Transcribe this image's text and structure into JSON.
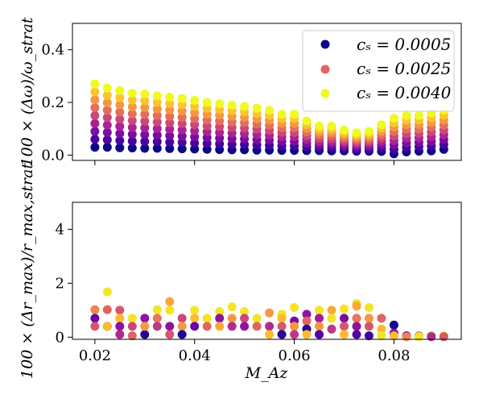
{
  "chart_data": [
    {
      "type": "scatter",
      "panel": "top",
      "ylabel": "100 × (Δω)/ω_strat",
      "xlabel": "",
      "xlim": [
        0.0155,
        0.0935
      ],
      "ylim": [
        -0.02,
        0.5
      ],
      "xticks": [
        0.02,
        0.04,
        0.06,
        0.08
      ],
      "yticks": [
        0.0,
        0.2,
        0.4
      ],
      "ytick_labels": [
        "0.0",
        "0.2",
        "0.4"
      ],
      "legend": {
        "location": "top-right",
        "entries": [
          {
            "name": "c_s = 0.0005",
            "text": "cₛ = 0.0005",
            "color": "#0d0887"
          },
          {
            "name": "c_s = 0.0025",
            "text": "cₛ = 0.0025",
            "color": "#e16462"
          },
          {
            "name": "c_s = 0.0040",
            "text": "cₛ = 0.0040",
            "color": "#f0f921"
          }
        ]
      },
      "colormap": "plasma",
      "series_count": 9,
      "x": [
        0.02,
        0.0225,
        0.025,
        0.0275,
        0.03,
        0.0325,
        0.035,
        0.0375,
        0.04,
        0.0425,
        0.045,
        0.0475,
        0.05,
        0.0525,
        0.055,
        0.0575,
        0.06,
        0.0625,
        0.065,
        0.0675,
        0.07,
        0.0725,
        0.075,
        0.0775,
        0.08,
        0.0825,
        0.085,
        0.0875,
        0.09
      ],
      "y_low": [
        0.03,
        0.03,
        0.028,
        0.027,
        0.026,
        0.026,
        0.025,
        0.024,
        0.023,
        0.022,
        0.021,
        0.02,
        0.02,
        0.019,
        0.019,
        0.018,
        0.018,
        0.017,
        0.017,
        0.016,
        0.016,
        0.015,
        0.015,
        0.014,
        0.005,
        0.012,
        0.015,
        0.016,
        0.022
      ],
      "y_high": [
        0.27,
        0.255,
        0.245,
        0.235,
        0.232,
        0.225,
        0.22,
        0.215,
        0.208,
        0.2,
        0.195,
        0.19,
        0.185,
        0.178,
        0.17,
        0.155,
        0.155,
        0.13,
        0.11,
        0.11,
        0.095,
        0.085,
        0.09,
        0.115,
        0.14,
        0.15,
        0.15,
        0.16,
        0.17
      ]
    },
    {
      "type": "scatter",
      "panel": "bottom",
      "ylabel": "100 × (Δr_max)/r_max,strat",
      "xlabel": "M_Az",
      "xlim": [
        0.0155,
        0.0935
      ],
      "ylim": [
        -0.08,
        5.0
      ],
      "xticks": [
        0.02,
        0.04,
        0.06,
        0.08
      ],
      "xtick_labels": [
        "0.02",
        "0.04",
        "0.06",
        "0.08"
      ],
      "yticks": [
        0,
        2,
        4
      ],
      "ytick_labels": [
        "0",
        "2",
        "4"
      ],
      "colormap": "plasma",
      "points": [
        {
          "x": 0.02,
          "y": 1.02,
          "c": 0.7
        },
        {
          "x": 0.02,
          "y": 0.7,
          "c": 0.2
        },
        {
          "x": 0.02,
          "y": 0.4,
          "c": 0.55
        },
        {
          "x": 0.0225,
          "y": 1.68,
          "c": 0.95
        },
        {
          "x": 0.0225,
          "y": 1.02,
          "c": 0.6
        },
        {
          "x": 0.0225,
          "y": 0.4,
          "c": 0.1
        },
        {
          "x": 0.0225,
          "y": 0.4,
          "c": 0.85
        },
        {
          "x": 0.025,
          "y": 1.0,
          "c": 0.55
        },
        {
          "x": 0.025,
          "y": 0.7,
          "c": 0.85
        },
        {
          "x": 0.025,
          "y": 0.4,
          "c": 0.3
        },
        {
          "x": 0.025,
          "y": 0.1,
          "c": 0.4
        },
        {
          "x": 0.0275,
          "y": 0.7,
          "c": 0.95
        },
        {
          "x": 0.0275,
          "y": 0.4,
          "c": 0.5
        },
        {
          "x": 0.0275,
          "y": 0.05,
          "c": 0.6
        },
        {
          "x": 0.03,
          "y": 0.7,
          "c": 0.3
        },
        {
          "x": 0.03,
          "y": 0.1,
          "c": 0.05
        },
        {
          "x": 0.03,
          "y": 0.4,
          "c": 0.75
        },
        {
          "x": 0.0325,
          "y": 1.02,
          "c": 0.95
        },
        {
          "x": 0.0325,
          "y": 0.7,
          "c": 0.65
        },
        {
          "x": 0.0325,
          "y": 0.4,
          "c": 0.45
        },
        {
          "x": 0.035,
          "y": 1.32,
          "c": 0.8
        },
        {
          "x": 0.035,
          "y": 1.0,
          "c": 0.95
        },
        {
          "x": 0.035,
          "y": 0.4,
          "c": 0.3
        },
        {
          "x": 0.035,
          "y": 0.1,
          "c": 0.55
        },
        {
          "x": 0.0375,
          "y": 0.7,
          "c": 0.5
        },
        {
          "x": 0.0375,
          "y": 0.4,
          "c": 0.75
        },
        {
          "x": 0.0375,
          "y": 0.1,
          "c": 0.05
        },
        {
          "x": 0.04,
          "y": 1.0,
          "c": 0.95
        },
        {
          "x": 0.04,
          "y": 0.7,
          "c": 0.85
        },
        {
          "x": 0.04,
          "y": 0.4,
          "c": 0.2
        },
        {
          "x": 0.0425,
          "y": 0.7,
          "c": 0.95
        },
        {
          "x": 0.0425,
          "y": 0.4,
          "c": 0.6
        },
        {
          "x": 0.045,
          "y": 0.95,
          "c": 0.95
        },
        {
          "x": 0.045,
          "y": 0.7,
          "c": 0.3
        },
        {
          "x": 0.045,
          "y": 0.4,
          "c": 0.8
        },
        {
          "x": 0.0475,
          "y": 1.12,
          "c": 0.95
        },
        {
          "x": 0.0475,
          "y": 0.7,
          "c": 0.75
        },
        {
          "x": 0.0475,
          "y": 0.4,
          "c": 0.4
        },
        {
          "x": 0.05,
          "y": 0.95,
          "c": 0.95
        },
        {
          "x": 0.05,
          "y": 0.7,
          "c": 0.5
        },
        {
          "x": 0.05,
          "y": 0.4,
          "c": 0.3
        },
        {
          "x": 0.0525,
          "y": 0.7,
          "c": 0.95
        },
        {
          "x": 0.0525,
          "y": 0.4,
          "c": 0.6
        },
        {
          "x": 0.055,
          "y": 0.9,
          "c": 0.75
        },
        {
          "x": 0.055,
          "y": 0.4,
          "c": 0.4
        },
        {
          "x": 0.055,
          "y": 0.1,
          "c": 0.85
        },
        {
          "x": 0.0575,
          "y": 0.85,
          "c": 0.95
        },
        {
          "x": 0.0575,
          "y": 0.7,
          "c": 0.85
        },
        {
          "x": 0.0575,
          "y": 0.4,
          "c": 0.55
        },
        {
          "x": 0.0575,
          "y": 0.1,
          "c": 0.05
        },
        {
          "x": 0.06,
          "y": 1.1,
          "c": 0.95
        },
        {
          "x": 0.06,
          "y": 0.6,
          "c": 0.25
        },
        {
          "x": 0.06,
          "y": 0.4,
          "c": 0.75
        },
        {
          "x": 0.06,
          "y": 0.1,
          "c": 0.45
        },
        {
          "x": 0.0625,
          "y": 0.85,
          "c": 0.3
        },
        {
          "x": 0.0625,
          "y": 0.6,
          "c": 0.6
        },
        {
          "x": 0.0625,
          "y": 0.3,
          "c": 0.05
        },
        {
          "x": 0.0625,
          "y": 0.1,
          "c": 0.85
        },
        {
          "x": 0.065,
          "y": 1.0,
          "c": 0.95
        },
        {
          "x": 0.065,
          "y": 0.7,
          "c": 0.35
        },
        {
          "x": 0.065,
          "y": 0.4,
          "c": 0.75
        },
        {
          "x": 0.065,
          "y": 0.1,
          "c": 0.15
        },
        {
          "x": 0.0675,
          "y": 1.0,
          "c": 0.8
        },
        {
          "x": 0.0675,
          "y": 0.7,
          "c": 0.95
        },
        {
          "x": 0.0675,
          "y": 0.3,
          "c": 0.45
        },
        {
          "x": 0.07,
          "y": 1.05,
          "c": 0.95
        },
        {
          "x": 0.07,
          "y": 0.7,
          "c": 0.25
        },
        {
          "x": 0.07,
          "y": 0.4,
          "c": 0.55
        },
        {
          "x": 0.07,
          "y": 0.1,
          "c": 0.85
        },
        {
          "x": 0.0725,
          "y": 1.25,
          "c": 0.95
        },
        {
          "x": 0.0725,
          "y": 1.15,
          "c": 0.8
        },
        {
          "x": 0.0725,
          "y": 0.7,
          "c": 0.65
        },
        {
          "x": 0.0725,
          "y": 0.4,
          "c": 0.3
        },
        {
          "x": 0.0725,
          "y": 0.1,
          "c": 0.15
        },
        {
          "x": 0.075,
          "y": 1.1,
          "c": 0.95
        },
        {
          "x": 0.075,
          "y": 0.7,
          "c": 0.75
        },
        {
          "x": 0.075,
          "y": 0.4,
          "c": 0.55
        },
        {
          "x": 0.075,
          "y": 0.05,
          "c": 0.1
        },
        {
          "x": 0.0775,
          "y": 0.7,
          "c": 0.6
        },
        {
          "x": 0.0775,
          "y": 0.3,
          "c": 0.85
        },
        {
          "x": 0.0775,
          "y": 0.05,
          "c": 0.95
        },
        {
          "x": 0.08,
          "y": 0.45,
          "c": 0.02
        },
        {
          "x": 0.08,
          "y": 0.15,
          "c": 0.3
        },
        {
          "x": 0.08,
          "y": 0.05,
          "c": 0.85
        },
        {
          "x": 0.0825,
          "y": 0.05,
          "c": 0.2
        },
        {
          "x": 0.0825,
          "y": 0.02,
          "c": 0.7
        },
        {
          "x": 0.085,
          "y": 0.05,
          "c": 0.6
        },
        {
          "x": 0.085,
          "y": 0.02,
          "c": 0.95
        },
        {
          "x": 0.0875,
          "y": 0.05,
          "c": 0.8
        },
        {
          "x": 0.0875,
          "y": 0.02,
          "c": 0.4
        },
        {
          "x": 0.09,
          "y": 0.05,
          "c": 0.95
        },
        {
          "x": 0.09,
          "y": 0.02,
          "c": 0.55
        }
      ]
    }
  ]
}
